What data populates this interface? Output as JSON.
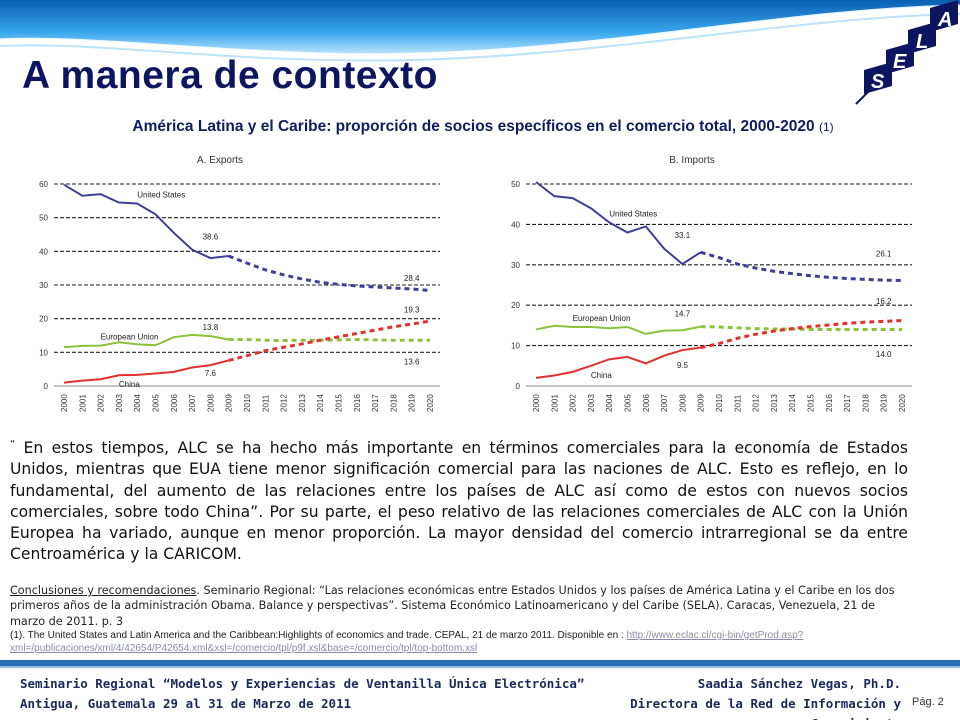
{
  "header": {
    "title": "A manera de contexto",
    "logo_letters": [
      "A",
      "L",
      "E",
      "S"
    ]
  },
  "subtitle": {
    "text": "América Latina y el Caribe: proporción de socios específicos en el comercio total, 2000-2020",
    "ref": "(1)"
  },
  "chart_data": [
    {
      "type": "line",
      "title": "A. Exports",
      "x": [
        "2000",
        "2001",
        "2002",
        "2003",
        "2004",
        "2005",
        "2006",
        "2007",
        "2008",
        "2009",
        "2010",
        "2011",
        "2012",
        "2013",
        "2014",
        "2015",
        "2016",
        "2017",
        "2018",
        "2019",
        "2020"
      ],
      "ylim": [
        0,
        60
      ],
      "yticks": [
        "0",
        "10",
        "20",
        "30",
        "40",
        "50",
        "60"
      ],
      "grid": true,
      "series": [
        {
          "name": "United States",
          "color": "#3f3f9a",
          "actual": [
            59.8,
            56.5,
            57,
            54.5,
            54.2,
            51,
            45.5,
            40.5,
            38,
            38.6
          ],
          "projected": [
            36.5,
            34.5,
            33,
            31.8,
            30.8,
            30.2,
            29.7,
            29.4,
            29.1,
            28.8,
            28.4
          ]
        },
        {
          "name": "European Union",
          "color": "#8ac33a",
          "actual": [
            11.5,
            11.9,
            12,
            13,
            12.4,
            12.1,
            14.5,
            15.2,
            14.8,
            13.8
          ],
          "projected": [
            13.8,
            13.6,
            13.5,
            13.6,
            13.6,
            13.7,
            13.8,
            13.7,
            13.6,
            13.6,
            13.6
          ]
        },
        {
          "name": "China",
          "color": "#e0312b",
          "actual": [
            1,
            1.6,
            2,
            3.2,
            3.3,
            3.7,
            4.2,
            5.5,
            6.2,
            7.6
          ],
          "projected": [
            9,
            10.5,
            11.5,
            12.5,
            13.6,
            14.6,
            15.6,
            16.6,
            17.6,
            18.4,
            19.3
          ]
        }
      ],
      "labels": [
        {
          "text": "38.6",
          "x": "2008",
          "y": 43.5
        },
        {
          "text": "13.8",
          "x": "2008",
          "y": 16.6
        },
        {
          "text": "7.6",
          "x": "2008",
          "y": 3
        },
        {
          "text": "28.4",
          "x": "2019",
          "y": 31.2
        },
        {
          "text": "19.3",
          "x": "2019",
          "y": 21.8
        },
        {
          "text": "13.6",
          "x": "2019",
          "y": 6.4
        }
      ]
    },
    {
      "type": "line",
      "title": "B. Imports",
      "x": [
        "2000",
        "2001",
        "2002",
        "2003",
        "2004",
        "2005",
        "2006",
        "2007",
        "2008",
        "2009",
        "2010",
        "2011",
        "2012",
        "2013",
        "2014",
        "2015",
        "2016",
        "2017",
        "2018",
        "2019",
        "2020"
      ],
      "ylim": [
        0,
        50
      ],
      "yticks": [
        "0",
        "10",
        "20",
        "30",
        "40",
        "50"
      ],
      "grid": true,
      "series": [
        {
          "name": "United States",
          "color": "#3f3f9a",
          "actual": [
            50.5,
            47,
            46.5,
            44,
            40.5,
            38,
            39.5,
            34,
            30.2,
            33.1
          ],
          "projected": [
            31.8,
            30.2,
            29.2,
            28.4,
            27.8,
            27.3,
            26.9,
            26.6,
            26.4,
            26.2,
            26.1
          ]
        },
        {
          "name": "European Union",
          "color": "#8ac33a",
          "actual": [
            14,
            14.9,
            14.6,
            14.6,
            14.3,
            14.6,
            12.9,
            13.7,
            13.8,
            14.7
          ],
          "projected": [
            14.6,
            14.4,
            14.2,
            14.1,
            14.1,
            14.0,
            14.0,
            14.0,
            14.0,
            14.0,
            14.0
          ]
        },
        {
          "name": "China",
          "color": "#e0312b",
          "actual": [
            2,
            2.6,
            3.5,
            5,
            6.6,
            7.2,
            5.6,
            7.5,
            8.9,
            9.5
          ],
          "projected": [
            10.5,
            11.8,
            12.8,
            13.6,
            14.2,
            14.7,
            15.1,
            15.5,
            15.8,
            16.0,
            16.2
          ]
        }
      ],
      "labels": [
        {
          "text": "33.1",
          "x": "2008",
          "y": 36.6
        },
        {
          "text": "14.7",
          "x": "2008",
          "y": 17.2
        },
        {
          "text": "9.5",
          "x": "2008",
          "y": 4.5
        },
        {
          "text": "26.1",
          "x": "2019",
          "y": 32
        },
        {
          "text": "16.2",
          "x": "2019",
          "y": 20.3
        },
        {
          "text": "14.0",
          "x": "2019",
          "y": 7.2
        }
      ]
    }
  ],
  "quote": {
    "open_mark": "“",
    "text": "En estos tiempos, ALC se ha hecho más importante en términos comerciales para la economía de Estados Unidos, mientras que EUA tiene menor significación comercial para las naciones de ALC. Esto es reflejo, en lo fundamental, del aumento de las relaciones entre los países de ALC así como de estos con nuevos socios comerciales, sobre todo China”. Por su parte, el peso relativo de las relaciones comerciales de ALC con la Unión Europea ha variado, aunque en menor proporción. La mayor densidad del comercio intrarregional se da entre Centroamérica y la CARICOM."
  },
  "citation": {
    "underlined": "Conclusiones y recomendaciones",
    "rest": ". Seminario Regional: “Las relaciones económicas entre Estados Unidos y los países de América Latina y el Caribe en los dos primeros años de la administración Obama. Balance y perspectivas”. Sistema Económico Latinoamericano y del Caribe (SELA). Caracas, Venezuela, 21 de marzo de 2011. p. 3"
  },
  "footnote": {
    "text": "(1). The United States and Latin America and the Caribbean:Highlights of economics and trade. CEPAL, 21 de marzo 2011. Disponible en : ",
    "link": "http://www.eclac.cl/cgi-bin/getProd.asp?xml=/publicaciones/xml/4/42654/P42654.xml&xsl=/comercio/tpl/p9f.xsl&base=/comercio/tpl/top-bottom.xsl"
  },
  "footer": {
    "left_line1": "Seminario Regional “Modelos y Experiencias de Ventanilla Única Electrónica”",
    "left_line2": "Antigua, Guatemala 29 al 31 de Marzo de 2011",
    "right_line1": "Saadia Sánchez Vegas, Ph.D.",
    "right_line2": "Directora de la Red de Información y Conocimiento",
    "page": "Pág. 2"
  },
  "colors": {
    "title": "#0b1560",
    "footer_bar": "#2b6fb6",
    "header_wave": "#1e8ee0"
  }
}
